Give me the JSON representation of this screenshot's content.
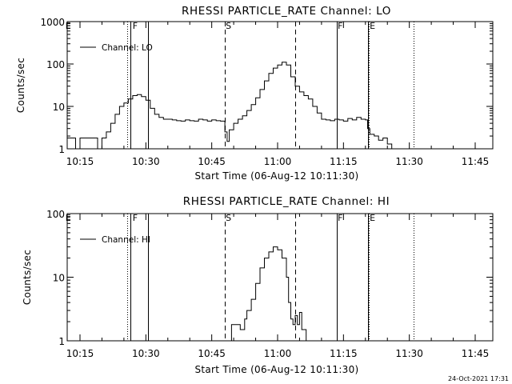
{
  "footer_timestamp": "24-Oct-2021 17:31",
  "chart_data": [
    {
      "type": "line",
      "title": "RHESSI PARTICLE_RATE Channel: LO",
      "xlabel": "Start Time (06-Aug-12 10:11:30)",
      "ylabel": "Counts/sec",
      "y_scale": "log",
      "ylim": [
        1,
        1000
      ],
      "y_ticks": [
        1,
        10,
        100,
        1000
      ],
      "y_tick_labels": [
        "1",
        "10",
        "100",
        "1000"
      ],
      "xlim_minutes": [
        11.5,
        73.5
      ],
      "x_ticks": [
        15,
        30,
        45,
        60,
        75,
        90,
        105
      ],
      "x_tick_labels": [
        "10:15",
        "10:30",
        "10:45",
        "11:00",
        "11:15",
        "11:30",
        "11:45"
      ],
      "legend": {
        "position": "top-left",
        "entries": [
          "Channel: LO"
        ]
      },
      "marker_labels": [
        {
          "text": "E",
          "x": 11.5
        },
        {
          "text": "F",
          "x": 26.8
        },
        {
          "text": "S",
          "x": 48.0
        },
        {
          "text": "F",
          "x": 73.5
        },
        {
          "text": "E",
          "x": 80.8
        }
      ],
      "vlines": [
        {
          "x": 25.8,
          "style": "dotted"
        },
        {
          "x": 26.4,
          "style": "solid"
        },
        {
          "x": 30.4,
          "style": "solid"
        },
        {
          "x": 48.0,
          "style": "dashed"
        },
        {
          "x": 64.0,
          "style": "dashed"
        },
        {
          "x": 73.5,
          "style": "solid"
        },
        {
          "x": 80.5,
          "style": "solid"
        },
        {
          "x": 80.8,
          "style": "dotted"
        },
        {
          "x": 91.0,
          "style": "dotted"
        }
      ],
      "series": [
        {
          "x": [
            12.0,
            13.0,
            14.0,
            15.0,
            16.0,
            17.0,
            18.0,
            19.0,
            20.0,
            21.0,
            22.0,
            23.0,
            24.0,
            25.0,
            26.0,
            27.0,
            28.0,
            29.0,
            30.0,
            31.0,
            32.0,
            33.0,
            34.0,
            35.0,
            36.0,
            37.0,
            38.0,
            39.0,
            40.0,
            41.0,
            42.0,
            43.0,
            44.0,
            45.0,
            46.0,
            47.0,
            48.0,
            48.5,
            49.0,
            50.0,
            51.0,
            52.0,
            53.0,
            54.0,
            55.0,
            56.0,
            57.0,
            58.0,
            59.0,
            60.0,
            61.0,
            62.0,
            63.0,
            64.0,
            65.0,
            66.0,
            67.0,
            68.0,
            69.0,
            70.0,
            71.0,
            72.0,
            73.0,
            74.0,
            75.0,
            76.0,
            77.0,
            78.0,
            79.0,
            80.0,
            80.5,
            81.0,
            82.0,
            83.0,
            84.0,
            85.0,
            86.0,
            87.0,
            88.0,
            89.0,
            90.0
          ],
          "y": [
            1.8,
            1.8,
            1,
            1.8,
            1.8,
            1.8,
            1.8,
            1,
            1.8,
            2.5,
            4,
            6.5,
            10,
            12,
            15,
            18,
            19,
            17,
            14,
            9,
            6.5,
            5.5,
            5,
            5,
            4.8,
            4.6,
            4.5,
            4.8,
            4.6,
            4.5,
            5,
            4.8,
            4.5,
            4.8,
            4.6,
            4.5,
            2.5,
            1.5,
            2.8,
            4,
            5,
            6,
            8,
            11,
            16,
            25,
            40,
            60,
            80,
            95,
            110,
            95,
            50,
            30,
            22,
            18,
            15,
            10,
            7,
            5,
            4.8,
            4.6,
            5,
            4.8,
            4.5,
            5.2,
            4.8,
            5.5,
            5,
            4.8,
            3,
            2.2,
            2,
            1.6,
            1.8,
            1.3,
            1,
            1,
            1,
            1,
            1
          ]
        }
      ]
    },
    {
      "type": "line",
      "title": "RHESSI PARTICLE_RATE Channel: HI",
      "xlabel": "Start Time (06-Aug-12 10:11:30)",
      "ylabel": "Counts/sec",
      "y_scale": "log",
      "ylim": [
        1,
        100
      ],
      "y_ticks": [
        1,
        10,
        100
      ],
      "y_tick_labels": [
        "1",
        "10",
        "100"
      ],
      "xlim_minutes": [
        11.5,
        73.5
      ],
      "x_ticks": [
        15,
        30,
        45,
        60,
        75,
        90,
        105
      ],
      "x_tick_labels": [
        "10:15",
        "10:30",
        "10:45",
        "11:00",
        "11:15",
        "11:30",
        "11:45"
      ],
      "legend": {
        "position": "top-left",
        "entries": [
          "Channel: HI"
        ]
      },
      "marker_labels": [
        {
          "text": "E",
          "x": 11.5
        },
        {
          "text": "F",
          "x": 26.8
        },
        {
          "text": "S",
          "x": 48.0
        },
        {
          "text": "F",
          "x": 73.5
        },
        {
          "text": "E",
          "x": 80.8
        }
      ],
      "vlines": [
        {
          "x": 25.8,
          "style": "dotted"
        },
        {
          "x": 26.4,
          "style": "solid"
        },
        {
          "x": 30.4,
          "style": "solid"
        },
        {
          "x": 48.0,
          "style": "dashed"
        },
        {
          "x": 64.0,
          "style": "dashed"
        },
        {
          "x": 73.5,
          "style": "solid"
        },
        {
          "x": 80.5,
          "style": "solid"
        },
        {
          "x": 80.8,
          "style": "dotted"
        },
        {
          "x": 91.0,
          "style": "dotted"
        }
      ],
      "series": [
        {
          "x": [
            48.5,
            49.5,
            50.5,
            51.5,
            52.5,
            53.0,
            54.0,
            55.0,
            56.0,
            57.0,
            58.0,
            59.0,
            60.0,
            61.0,
            62.0,
            62.5,
            63.0,
            63.5,
            64.0,
            64.5,
            65.0,
            65.5,
            66.0,
            66.5
          ],
          "y": [
            1,
            1.8,
            1.8,
            1.5,
            2.2,
            3,
            4.5,
            8,
            14,
            20,
            25,
            30,
            27,
            20,
            10,
            4,
            2.2,
            1.8,
            2.5,
            1.8,
            2.8,
            1.5,
            1.5,
            1
          ]
        }
      ]
    }
  ]
}
